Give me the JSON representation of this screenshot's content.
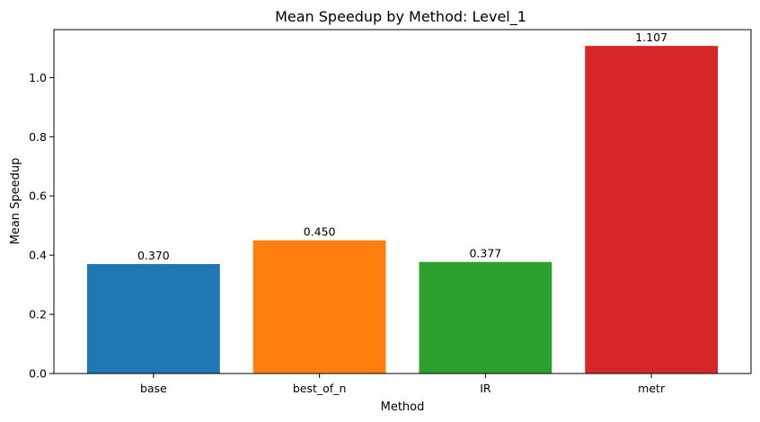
{
  "chart_data": {
    "type": "bar",
    "title": "Mean Speedup by Method: Level_1",
    "xlabel": "Method",
    "ylabel": "Mean Speedup",
    "categories": [
      "base",
      "best_of_n",
      "IR",
      "metr"
    ],
    "values": [
      0.37,
      0.45,
      0.377,
      1.107
    ],
    "value_labels": [
      "0.370",
      "0.450",
      "0.377",
      "1.107"
    ],
    "colors": [
      "#1f77b4",
      "#ff7f0e",
      "#2ca02c",
      "#d62728"
    ],
    "ylim": [
      0,
      1.162
    ],
    "yticks": [
      0.0,
      0.2,
      0.4,
      0.6,
      0.8,
      1.0
    ],
    "ytick_labels": [
      "0.0",
      "0.2",
      "0.4",
      "0.6",
      "0.8",
      "1.0"
    ],
    "grid": false,
    "legend": "none"
  }
}
